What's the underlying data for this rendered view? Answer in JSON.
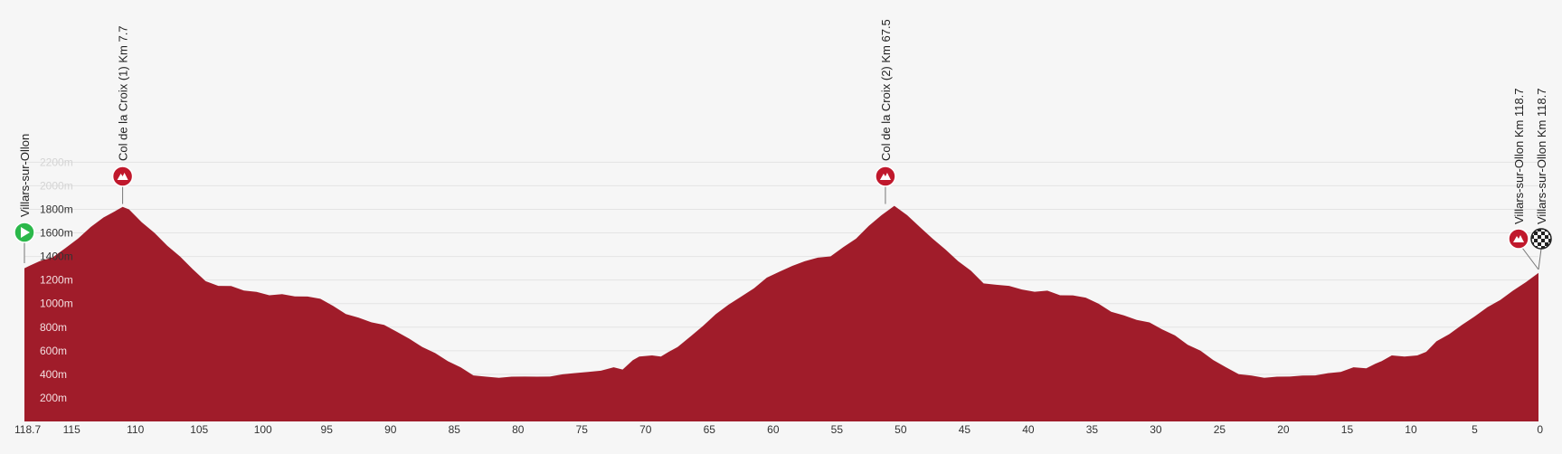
{
  "chart_data": {
    "type": "area",
    "title": "",
    "xlabel": "",
    "ylabel": "",
    "x_reversed": true,
    "xlim": [
      118.7,
      0
    ],
    "ylim": [
      0,
      2300
    ],
    "x_ticks": [
      {
        "value": 118.7,
        "label": "118.7"
      },
      {
        "value": 115,
        "label": "115"
      },
      {
        "value": 110,
        "label": "110"
      },
      {
        "value": 105,
        "label": "105"
      },
      {
        "value": 100,
        "label": "100"
      },
      {
        "value": 95,
        "label": "95"
      },
      {
        "value": 90,
        "label": "90"
      },
      {
        "value": 85,
        "label": "85"
      },
      {
        "value": 80,
        "label": "80"
      },
      {
        "value": 75,
        "label": "75"
      },
      {
        "value": 70,
        "label": "70"
      },
      {
        "value": 65,
        "label": "65"
      },
      {
        "value": 60,
        "label": "60"
      },
      {
        "value": 55,
        "label": "55"
      },
      {
        "value": 50,
        "label": "50"
      },
      {
        "value": 45,
        "label": "45"
      },
      {
        "value": 40,
        "label": "40"
      },
      {
        "value": 35,
        "label": "35"
      },
      {
        "value": 30,
        "label": "30"
      },
      {
        "value": 25,
        "label": "25"
      },
      {
        "value": 20,
        "label": "20"
      },
      {
        "value": 15,
        "label": "15"
      },
      {
        "value": 10,
        "label": "10"
      },
      {
        "value": 5,
        "label": "5"
      },
      {
        "value": 0,
        "label": "0"
      }
    ],
    "y_ticks": [
      {
        "value": 200,
        "label": "200m"
      },
      {
        "value": 400,
        "label": "400m"
      },
      {
        "value": 600,
        "label": "600m"
      },
      {
        "value": 800,
        "label": "800m"
      },
      {
        "value": 1000,
        "label": "1000m"
      },
      {
        "value": 1200,
        "label": "1200m"
      },
      {
        "value": 1400,
        "label": "1400m"
      },
      {
        "value": 1600,
        "label": "1600m"
      },
      {
        "value": 1800,
        "label": "1800m"
      },
      {
        "value": 2000,
        "label": "2000m"
      },
      {
        "value": 2200,
        "label": "2200m"
      }
    ],
    "grid": true,
    "fill_color": "#a01c2a",
    "grid_color": "#e4e4e4",
    "series": [
      {
        "name": "",
        "x": [
          118.7,
          118.3,
          117.5,
          116.5,
          115.5,
          114.5,
          113.5,
          112.5,
          111.5,
          111.0,
          110.5,
          109.5,
          108.5,
          107.5,
          106.5,
          105.5,
          104.5,
          103.5,
          102.5,
          101.5,
          100.5,
          99.5,
          98.5,
          97.5,
          96.5,
          95.5,
          94.5,
          93.5,
          92.5,
          91.5,
          90.5,
          89.5,
          88.5,
          87.5,
          86.5,
          85.5,
          84.5,
          83.5,
          82.5,
          81.5,
          80.5,
          79.5,
          78.5,
          77.5,
          76.5,
          75.5,
          74.5,
          73.5,
          72.5,
          71.8,
          71.0,
          70.5,
          69.5,
          68.8,
          68.2,
          67.5,
          66.5,
          65.5,
          64.5,
          63.5,
          62.5,
          61.5,
          60.5,
          59.5,
          58.5,
          57.5,
          56.5,
          55.5,
          54.5,
          53.5,
          52.5,
          51.5,
          50.5,
          49.5,
          48.5,
          47.5,
          46.5,
          45.5,
          44.5,
          43.5,
          42.5,
          41.5,
          40.5,
          39.5,
          38.5,
          37.5,
          36.5,
          35.5,
          34.5,
          33.5,
          32.5,
          31.5,
          30.5,
          29.5,
          28.5,
          27.5,
          26.5,
          25.5,
          24.5,
          23.5,
          22.5,
          21.5,
          20.5,
          19.5,
          18.5,
          17.5,
          16.5,
          15.5,
          14.5,
          13.5,
          12.8,
          12.3,
          11.5,
          10.5,
          9.5,
          8.8,
          8.0,
          7.0,
          6.0,
          5.0,
          4.0,
          3.0,
          2.0,
          1.0,
          0.0
        ],
        "values": [
          1300,
          1330,
          1360,
          1400,
          1470,
          1560,
          1650,
          1740,
          1790,
          1830,
          1800,
          1700,
          1600,
          1500,
          1400,
          1300,
          1190,
          1160,
          1150,
          1120,
          1100,
          1080,
          1080,
          1070,
          1060,
          1050,
          980,
          920,
          880,
          850,
          820,
          770,
          700,
          640,
          580,
          520,
          460,
          400,
          380,
          380,
          380,
          390,
          380,
          390,
          400,
          420,
          420,
          440,
          460,
          450,
          520,
          560,
          560,
          560,
          590,
          640,
          720,
          820,
          910,
          1000,
          1060,
          1140,
          1220,
          1280,
          1320,
          1370,
          1390,
          1410,
          1480,
          1560,
          1660,
          1760,
          1830,
          1760,
          1650,
          1560,
          1460,
          1370,
          1280,
          1180,
          1160,
          1160,
          1120,
          1110,
          1110,
          1080,
          1070,
          1060,
          1000,
          940,
          900,
          870,
          840,
          790,
          730,
          660,
          600,
          530,
          460,
          410,
          390,
          380,
          380,
          390,
          390,
          400,
          410,
          430,
          460,
          460,
          490,
          520,
          560,
          560,
          560,
          600,
          680,
          750,
          820,
          900,
          970,
          1040,
          1110,
          1190,
          1260
        ]
      }
    ],
    "markers": [
      {
        "km_remaining": 118.7,
        "type": "start",
        "label": "Villars-sur-Ollon",
        "color": "#2bb84a"
      },
      {
        "km_remaining": 111.0,
        "type": "climb",
        "label": "Col de la Croix (1) Km 7.7",
        "color": "#c0182c"
      },
      {
        "km_remaining": 51.2,
        "type": "climb",
        "label": "Col de la Croix (2) Km 67.5",
        "color": "#c0182c"
      },
      {
        "km_remaining": 0,
        "type": "climb",
        "label": "Villars-sur-Ollon Km 118.7",
        "color": "#c0182c"
      },
      {
        "km_remaining": 0,
        "type": "finish",
        "label": "Villars-sur-Ollon Km 118.7",
        "color": "#222222"
      }
    ]
  }
}
